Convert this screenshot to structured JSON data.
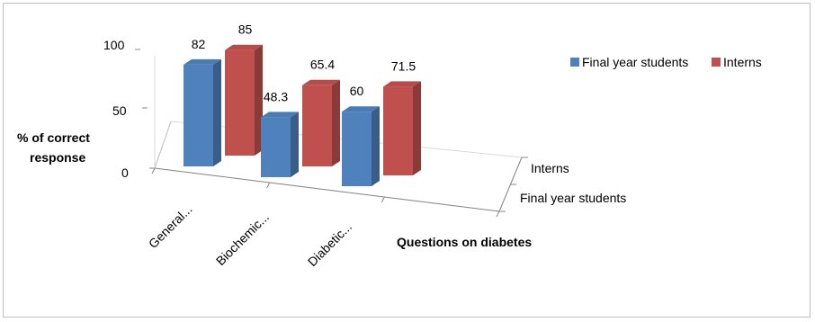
{
  "chart_data": {
    "type": "bar",
    "subtype": "3d-clustered-column",
    "categories": [
      "General...",
      "Biochemic...",
      "Diabetic..."
    ],
    "series": [
      {
        "name": "Final year students",
        "values": [
          82,
          48.3,
          60
        ],
        "color": "#4f81bd"
      },
      {
        "name": "Interns",
        "values": [
          85,
          65.4,
          71.5
        ],
        "color": "#c0504d"
      }
    ],
    "title": "",
    "xlabel": "Questions on diabetes",
    "ylabel": "% of correct response",
    "depth_labels": [
      "Interns",
      "Final year students"
    ],
    "ylim": [
      0,
      100
    ],
    "yticks": [
      "0",
      "50",
      "100"
    ],
    "grid": false,
    "legend": "top-right",
    "data_labels": {
      "Final year students": [
        "82",
        "48.3",
        "60"
      ],
      "Interns": [
        "85",
        "65.4",
        "71.5"
      ]
    }
  }
}
